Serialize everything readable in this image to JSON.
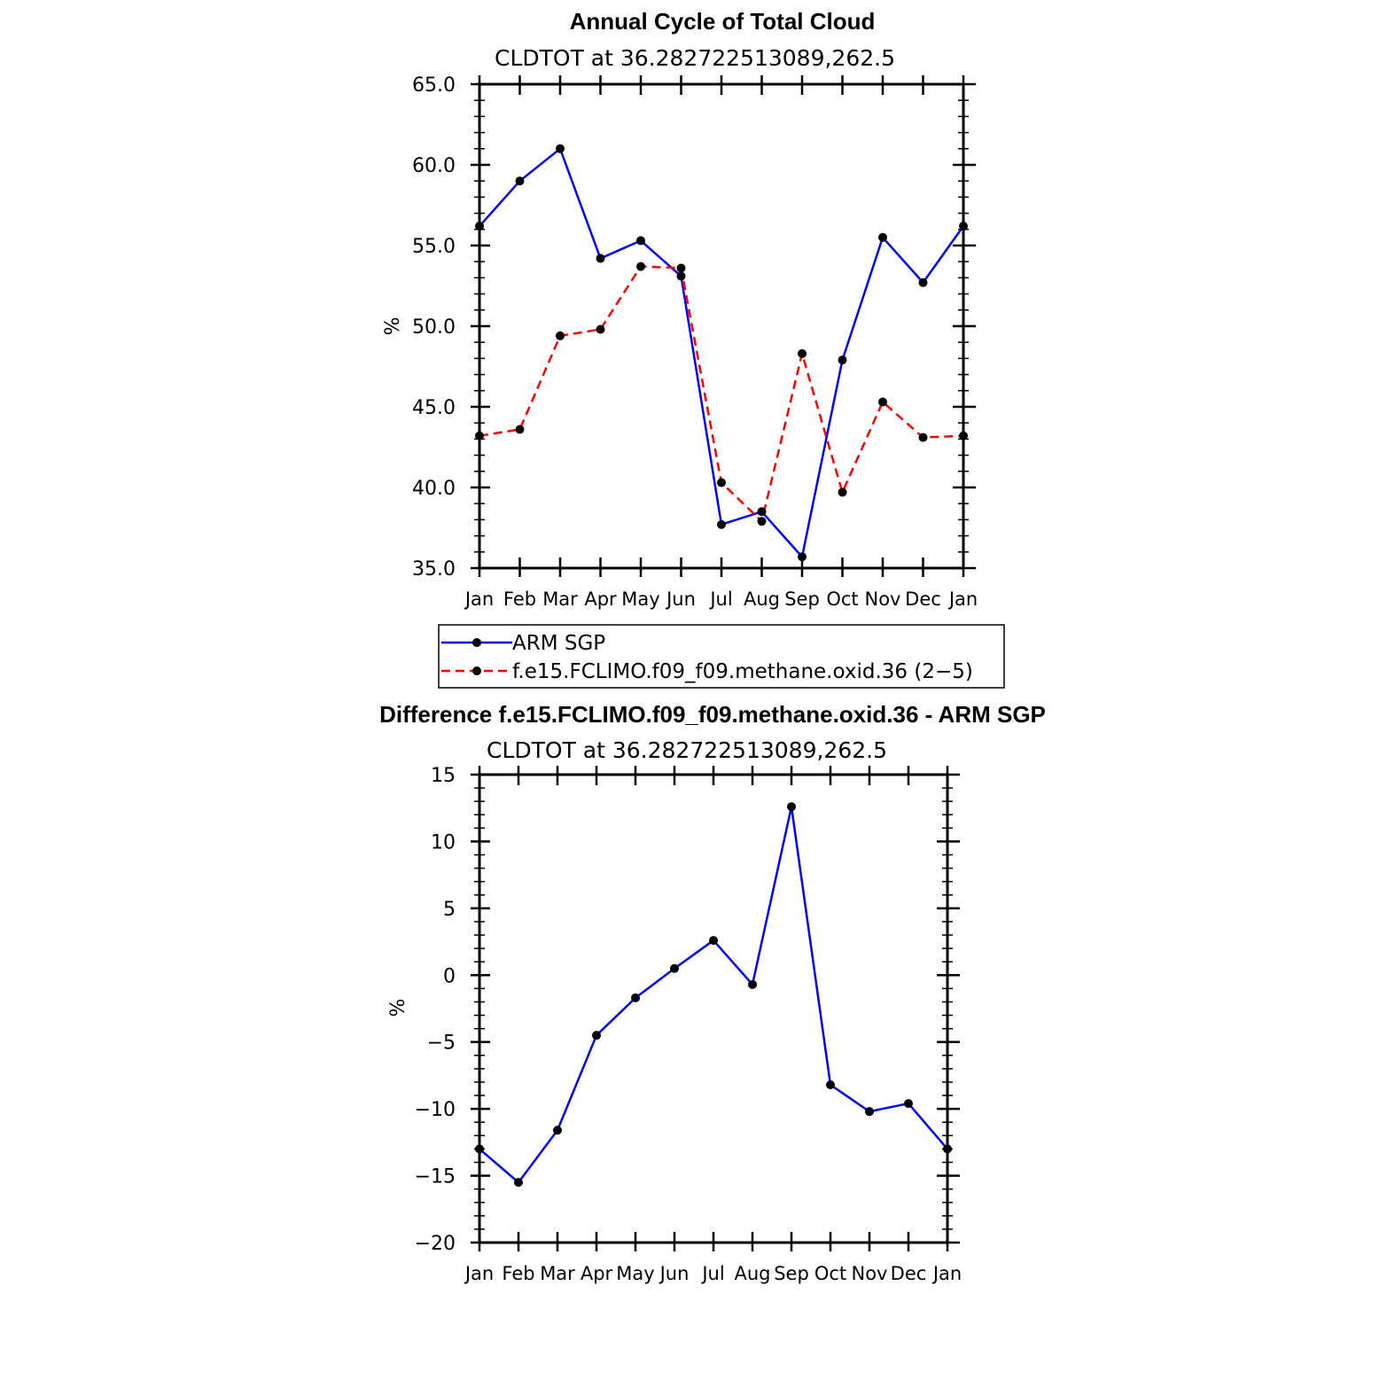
{
  "chart_data": [
    {
      "type": "line",
      "title": "Annual Cycle of Total Cloud",
      "subtitle": "CLDTOT  at  36.282722513089,262.5",
      "ylabel": "%",
      "xlabel": "",
      "categories": [
        "Jan",
        "Feb",
        "Mar",
        "Apr",
        "May",
        "Jun",
        "Jul",
        "Aug",
        "Sep",
        "Oct",
        "Nov",
        "Dec",
        "Jan"
      ],
      "ylim": [
        35,
        65
      ],
      "yticks": [
        "35.0",
        "40.0",
        "45.0",
        "50.0",
        "55.0",
        "60.0",
        "65.0"
      ],
      "series": [
        {
          "name": "ARM SGP",
          "color": "#0000ff",
          "dash": "solid",
          "values": [
            56.2,
            59.0,
            61.0,
            54.2,
            55.3,
            53.1,
            37.7,
            38.5,
            35.7,
            47.9,
            55.5,
            52.7,
            56.2
          ]
        },
        {
          "name": "f.e15.FCLIMO.f09_f09.methane.oxid.36 (2−5)",
          "color": "#ff0000",
          "dash": "dashed",
          "values": [
            43.2,
            43.6,
            49.4,
            49.8,
            53.7,
            53.6,
            40.3,
            37.9,
            48.3,
            39.7,
            45.3,
            43.1,
            43.2
          ]
        }
      ],
      "legend": "below"
    },
    {
      "type": "line",
      "title": "Difference f.e15.FCLIMO.f09_f09.methane.oxid.36 - ARM SGP",
      "subtitle": "CLDTOT  at  36.282722513089,262.5",
      "ylabel": "%",
      "xlabel": "",
      "categories": [
        "Jan",
        "Feb",
        "Mar",
        "Apr",
        "May",
        "Jun",
        "Jul",
        "Aug",
        "Sep",
        "Oct",
        "Nov",
        "Dec",
        "Jan"
      ],
      "ylim": [
        -20,
        15
      ],
      "yticks": [
        "−20",
        "−15",
        "−10",
        "−5",
        "0",
        "5",
        "10",
        "15"
      ],
      "series": [
        {
          "name": "Difference",
          "color": "#0000ff",
          "dash": "solid",
          "values": [
            -13.0,
            -15.5,
            -11.6,
            -4.5,
            -1.7,
            0.5,
            2.6,
            -0.7,
            12.6,
            -8.2,
            -10.2,
            -9.6,
            -13.0
          ]
        }
      ]
    }
  ]
}
